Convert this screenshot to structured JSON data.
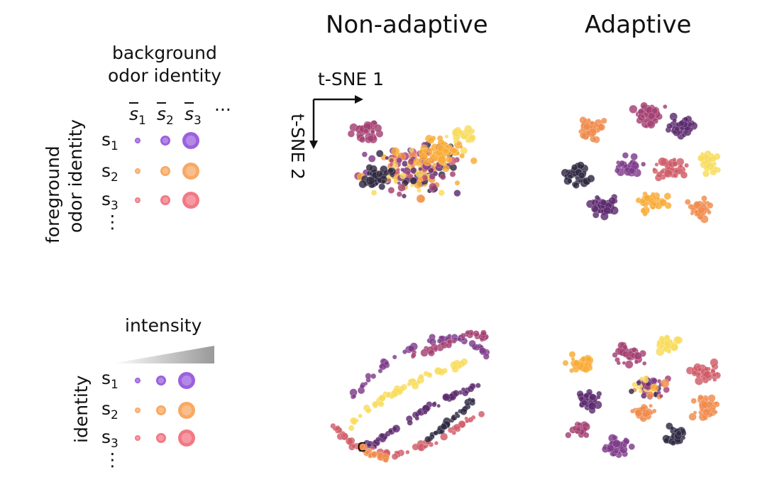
{
  "columns": {
    "non_adaptive": "Non-adaptive",
    "adaptive": "Adaptive"
  },
  "legend_top": {
    "background_label_line1": "background",
    "background_label_line2": "odor identity",
    "foreground_label_line1": "foreground",
    "foreground_label_line2": "odor identity",
    "bg_symbols": [
      "s̄1",
      "s̄2",
      "s̄3"
    ],
    "fg_symbols": [
      "s1",
      "s2",
      "s3"
    ],
    "ellipsis_h": "···",
    "ellipsis_v": "⋮"
  },
  "legend_bottom": {
    "intensity_label": "intensity",
    "identity_label": "identity",
    "symbols": [
      "s1",
      "s2",
      "s3"
    ],
    "ellipsis_v": "⋮"
  },
  "axes": {
    "x_label": "t-SNE 1",
    "y_label": "t-SNE 2"
  },
  "stray_glyph": "c",
  "colors": {
    "dark_navy": "#2e2841",
    "deep_purple": "#5b2a6e",
    "violet": "#7e3b8a",
    "magenta": "#a33f71",
    "rose": "#cf5a66",
    "orange": "#f08a4b",
    "amber": "#f9ab34",
    "yellow": "#f8dc5a",
    "legend_purple": "#8a44d8",
    "legend_orange": "#f79a48",
    "legend_red": "#f06070",
    "wedge_gray": "#999999"
  }
}
